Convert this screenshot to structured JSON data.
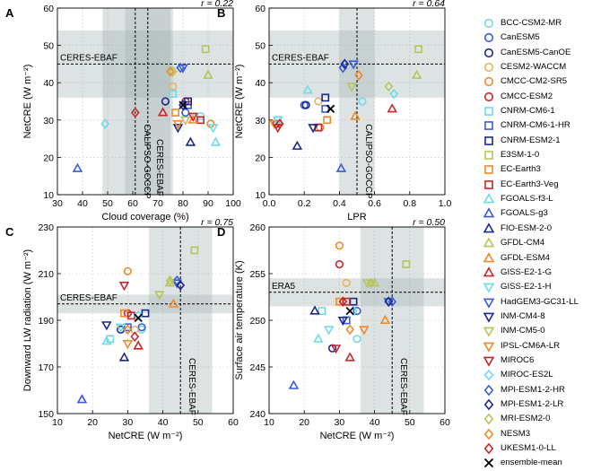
{
  "models": [
    {
      "name": "BCC-CSM2-MR",
      "color": "#70dbe8",
      "marker": "circle"
    },
    {
      "name": "CanESM5",
      "color": "#3a5bd9",
      "marker": "circle"
    },
    {
      "name": "CanESM5-CanOE",
      "color": "#1a2a8a",
      "marker": "circle"
    },
    {
      "name": "CESM2-WACCM",
      "color": "#e9b25c",
      "marker": "circle"
    },
    {
      "name": "CMCC-CM2-SR5",
      "color": "#ef8a2a",
      "marker": "circle"
    },
    {
      "name": "CMCC-ESM2",
      "color": "#c9262a",
      "marker": "circle"
    },
    {
      "name": "CNRM-CM6-1",
      "color": "#70dbe8",
      "marker": "square"
    },
    {
      "name": "CNRM-CM6-1-HR",
      "color": "#3a5bd9",
      "marker": "square"
    },
    {
      "name": "CNRM-ESM2-1",
      "color": "#1a2a8a",
      "marker": "square"
    },
    {
      "name": "E3SM-1-0",
      "color": "#b7c45a",
      "marker": "square"
    },
    {
      "name": "EC-Earth3",
      "color": "#ef8a2a",
      "marker": "square"
    },
    {
      "name": "EC-Earth3-Veg",
      "color": "#c9262a",
      "marker": "square"
    },
    {
      "name": "FGOALS-f3-L",
      "color": "#70dbe8",
      "marker": "triangle"
    },
    {
      "name": "FGOALS-g3",
      "color": "#3a5bd9",
      "marker": "triangle"
    },
    {
      "name": "FIO-ESM-2-0",
      "color": "#1a2a8a",
      "marker": "triangle"
    },
    {
      "name": "GFDL-CM4",
      "color": "#b7c45a",
      "marker": "triangle"
    },
    {
      "name": "GFDL-ESM4",
      "color": "#ef8a2a",
      "marker": "triangle"
    },
    {
      "name": "GISS-E2-1-G",
      "color": "#c9262a",
      "marker": "triangle"
    },
    {
      "name": "GISS-E2-1-H",
      "color": "#70dbe8",
      "marker": "triangle-down"
    },
    {
      "name": "HadGEM3-GC31-LL",
      "color": "#3a5bd9",
      "marker": "triangle-down"
    },
    {
      "name": "INM-CM4-8",
      "color": "#1a2a8a",
      "marker": "triangle-down"
    },
    {
      "name": "INM-CM5-0",
      "color": "#b7c45a",
      "marker": "triangle-down"
    },
    {
      "name": "IPSL-CM6A-LR",
      "color": "#ef8a2a",
      "marker": "triangle-down"
    },
    {
      "name": "MIROC6",
      "color": "#c9262a",
      "marker": "triangle-down"
    },
    {
      "name": "MIROC-ES2L",
      "color": "#70dbe8",
      "marker": "diamond"
    },
    {
      "name": "MPI-ESM1-2-HR",
      "color": "#3a5bd9",
      "marker": "diamond"
    },
    {
      "name": "MPI-ESM1-2-LR",
      "color": "#1a2a8a",
      "marker": "diamond"
    },
    {
      "name": "MRI-ESM2-0",
      "color": "#b7c45a",
      "marker": "diamond"
    },
    {
      "name": "NESM3",
      "color": "#ef8a2a",
      "marker": "diamond"
    },
    {
      "name": "UKESM1-0-LL",
      "color": "#c9262a",
      "marker": "diamond"
    },
    {
      "name": "ensemble-mean",
      "color": "#000000",
      "marker": "x"
    }
  ],
  "chart_data": [
    {
      "type": "scatter",
      "panel": "A",
      "r_label": "r = 0.22",
      "xlabel": "Cloud coverage (%)",
      "ylabel": "NetCRE (W m⁻²)",
      "xlim": [
        30,
        100
      ],
      "ylim": [
        10,
        60
      ],
      "xticks": [
        30,
        40,
        50,
        60,
        70,
        80,
        90,
        100
      ],
      "yticks": [
        10,
        20,
        30,
        40,
        50,
        60
      ],
      "hline": {
        "value": 45,
        "band": [
          36,
          54
        ],
        "label": "CERES-EBAF"
      },
      "vlines": [
        {
          "value": 61,
          "band": [
            48,
            75
          ],
          "label": "CALIPSO-GOCCP"
        },
        {
          "value": 66,
          "band": [
            57,
            76
          ],
          "label": "CERES-EBAF"
        }
      ],
      "x": [
        87,
        81,
        73,
        76,
        91,
        81,
        76,
        82,
        82,
        89,
        77,
        87,
        93,
        38,
        83,
        90,
        84,
        72,
        92,
        80,
        78,
        81,
        78,
        84,
        49,
        79,
        80,
        76,
        75,
        61,
        80
      ],
      "y": [
        31,
        32,
        35,
        39,
        29,
        35,
        37,
        34,
        35,
        49,
        32,
        30,
        24,
        17,
        24,
        42,
        30,
        32,
        28,
        44,
        28,
        30,
        29,
        31,
        29,
        44,
        34,
        43,
        43,
        32,
        34
      ]
    },
    {
      "type": "scatter",
      "panel": "B",
      "r_label": "r = 0.64",
      "xlabel": "LPR",
      "ylabel": "NetCRE (W m⁻²)",
      "xlim": [
        0,
        1
      ],
      "ylim": [
        10,
        60
      ],
      "xticks": [
        0,
        0.2,
        0.4,
        0.6,
        0.8,
        1.0
      ],
      "yticks": [
        10,
        20,
        30,
        40,
        50,
        60
      ],
      "hline": {
        "value": 45,
        "band": [
          36,
          54
        ],
        "label": "CERES-EBAF"
      },
      "vlines": [
        {
          "value": 0.5,
          "band": [
            0.4,
            0.6
          ],
          "label": "CALIPSO-GOCCP"
        }
      ],
      "x": [
        0.53,
        0.2,
        0.21,
        0.28,
        0.29,
        0.04,
        0.05,
        0.32,
        0.32,
        0.85,
        0.33,
        0.28,
        0.22,
        0.41,
        0.16,
        0.84,
        0.49,
        0.7,
        0.05,
        0.48,
        0.25,
        0.47,
        0.03,
        0.05,
        0.71,
        0.42,
        0.43,
        0.68,
        0.51,
        0.06,
        0.35
      ],
      "y": [
        35,
        34,
        34,
        35,
        28,
        29,
        30,
        33,
        36,
        49,
        30,
        28,
        38,
        17,
        23,
        42,
        31,
        33,
        30,
        45,
        28,
        39,
        29,
        28,
        37,
        44,
        45,
        39,
        42,
        29,
        33
      ]
    },
    {
      "type": "scatter",
      "panel": "C",
      "r_label": "r = 0.75",
      "xlabel": "NetCRE (W m⁻²)",
      "ylabel": "Downward LW radiation (W m⁻²)",
      "xlim": [
        10,
        60
      ],
      "ylim": [
        150,
        230
      ],
      "xticks": [
        10,
        20,
        30,
        40,
        50,
        60
      ],
      "yticks": [
        150,
        170,
        190,
        210,
        230
      ],
      "hline": {
        "value": 197,
        "band": [
          193,
          201
        ],
        "label": "CERES-EBAF"
      },
      "vlines": [
        {
          "value": 45,
          "band": [
            36,
            54
          ],
          "label": "CERES-EBAF"
        }
      ],
      "x": [
        34,
        34,
        28,
        32,
        30,
        30,
        25,
        30,
        35,
        49,
        29,
        31,
        24,
        17,
        29,
        42,
        43,
        33,
        28,
        44,
        24,
        39,
        30,
        29,
        33,
        44,
        45,
        42,
        30,
        32,
        33
      ],
      "y": [
        186,
        187,
        186,
        186,
        211,
        193,
        182,
        187,
        193,
        220,
        193,
        192,
        181,
        156,
        174,
        206,
        197,
        179,
        187,
        206,
        188,
        201,
        180,
        205,
        192,
        207,
        205,
        207,
        186,
        183,
        191
      ]
    },
    {
      "type": "scatter",
      "panel": "D",
      "r_label": "r = 0.50",
      "xlabel": "NetCRE (W m⁻²)",
      "ylabel": "Surface air temperature (K)",
      "xlim": [
        10,
        60
      ],
      "ylim": [
        240,
        260
      ],
      "xticks": [
        10,
        20,
        30,
        40,
        50,
        60
      ],
      "yticks": [
        240,
        245,
        250,
        255,
        260
      ],
      "hline": {
        "value": 253,
        "band": [
          251.5,
          254.5
        ],
        "label": "ERA5"
      },
      "vlines": [
        {
          "value": 45,
          "band": [
            36,
            54
          ],
          "label": "CERES-EBAF"
        }
      ],
      "x": [
        35,
        35,
        28,
        32,
        30,
        30,
        25,
        32,
        34,
        49,
        30,
        32,
        24,
        17,
        23,
        40,
        43,
        33,
        27,
        44,
        31,
        38,
        37,
        29,
        34,
        45,
        44,
        39,
        33,
        31,
        33
      ],
      "y": [
        248,
        251,
        247,
        254,
        258,
        256,
        251,
        250,
        252,
        256,
        252,
        252,
        248,
        243,
        251,
        254,
        250,
        246,
        249,
        252,
        250,
        254,
        249,
        247,
        251,
        252,
        252,
        254,
        249,
        252,
        251
      ]
    }
  ]
}
